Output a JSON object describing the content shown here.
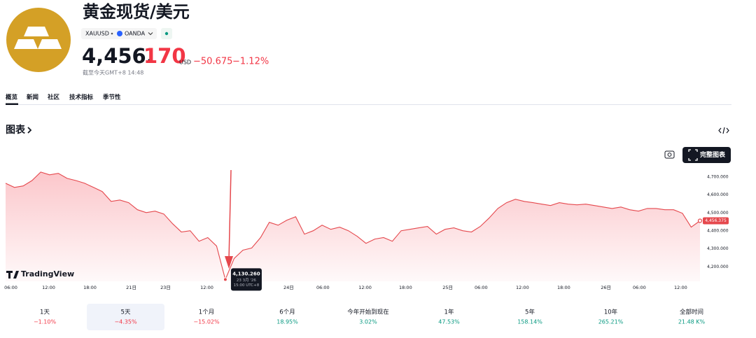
{
  "header": {
    "title": "黄金现货/美元",
    "symbol": "XAUUSD",
    "exchange": "OANDA",
    "price_main": "4,456.",
    "price_decimals": "170",
    "currency": "USD",
    "change": "−50.675",
    "change_percent": "−1.12%",
    "as_of": "截至今天GMT+8 14:48"
  },
  "tabs": [
    "概览",
    "新闻",
    "社区",
    "技术指标",
    "季节性"
  ],
  "section_title": "图表",
  "full_chart_button": "完整图表",
  "brand": "TradingView",
  "chart_data": {
    "type": "area",
    "color": "#e5484d",
    "values": [
      4665,
      4642,
      4650,
      4680,
      4727,
      4712,
      4720,
      4692,
      4680,
      4665,
      4642,
      4619,
      4564,
      4572,
      4557,
      4518,
      4502,
      4510,
      4494,
      4440,
      4394,
      4401,
      4343,
      4363,
      4316,
      4130.26,
      4247,
      4293,
      4305,
      4363,
      4448,
      4432,
      4460,
      4479,
      4382,
      4401,
      4432,
      4409,
      4421,
      4401,
      4370,
      4331,
      4355,
      4363,
      4343,
      4401,
      4409,
      4417,
      4425,
      4382,
      4409,
      4417,
      4401,
      4394,
      4425,
      4471,
      4525,
      4557,
      4576,
      4564,
      4557,
      4549,
      4541,
      4557,
      4549,
      4545,
      4549,
      4541,
      4533,
      4525,
      4533,
      4518,
      4510,
      4525,
      4525,
      4518,
      4518,
      4498,
      4421,
      4456.375
    ],
    "xlim": [
      0,
      79
    ],
    "xticks": [
      {
        "value": 0.6,
        "label": "06:00"
      },
      {
        "value": 4.9,
        "label": "12:00"
      },
      {
        "value": 9.6,
        "label": "18:00"
      },
      {
        "value": 14.3,
        "label": "21日"
      },
      {
        "value": 18.2,
        "label": "23日"
      },
      {
        "value": 22.9,
        "label": "12:00"
      },
      {
        "value": 32.2,
        "label": "24日"
      },
      {
        "value": 36.1,
        "label": "06:00"
      },
      {
        "value": 40.9,
        "label": "12:00"
      },
      {
        "value": 45.5,
        "label": "18:00"
      },
      {
        "value": 50.3,
        "label": "25日"
      },
      {
        "value": 54.1,
        "label": "06:00"
      },
      {
        "value": 58.8,
        "label": "12:00"
      },
      {
        "value": 63.5,
        "label": "18:00"
      },
      {
        "value": 68.3,
        "label": "26日"
      },
      {
        "value": 72.1,
        "label": "06:00"
      },
      {
        "value": 76.8,
        "label": "12:00"
      }
    ],
    "ylim": [
      4120,
      4750
    ],
    "yticks": [
      {
        "value": 4200,
        "label": "4,200.000"
      },
      {
        "value": 4300,
        "label": "4,300.000"
      },
      {
        "value": 4400,
        "label": "4,400.000"
      },
      {
        "value": 4500,
        "label": "4,500.000"
      },
      {
        "value": 4600,
        "label": "4,600.000"
      },
      {
        "value": 4700,
        "label": "4,700.000"
      }
    ],
    "last_label": "4,456.375",
    "tooltip": {
      "x": 25,
      "label": "4,130.260",
      "date": "23 3月 '26",
      "time": "15:00 UTC+8"
    }
  },
  "periods": [
    {
      "label": "1天",
      "change": "−1.10%",
      "color": "#f23645"
    },
    {
      "label": "5天",
      "change": "−4.35%",
      "color": "#f23645"
    },
    {
      "label": "1个月",
      "change": "−15.02%",
      "color": "#f23645"
    },
    {
      "label": "6个月",
      "change": "18.95%",
      "color": "#089981"
    },
    {
      "label": "今年开始到现在",
      "change": "3.02%",
      "color": "#089981"
    },
    {
      "label": "1年",
      "change": "47.53%",
      "color": "#089981"
    },
    {
      "label": "5年",
      "change": "158.14%",
      "color": "#089981"
    },
    {
      "label": "10年",
      "change": "265.21%",
      "color": "#089981"
    },
    {
      "label": "全部时间",
      "change": "21.48 K%",
      "color": "#089981"
    }
  ]
}
